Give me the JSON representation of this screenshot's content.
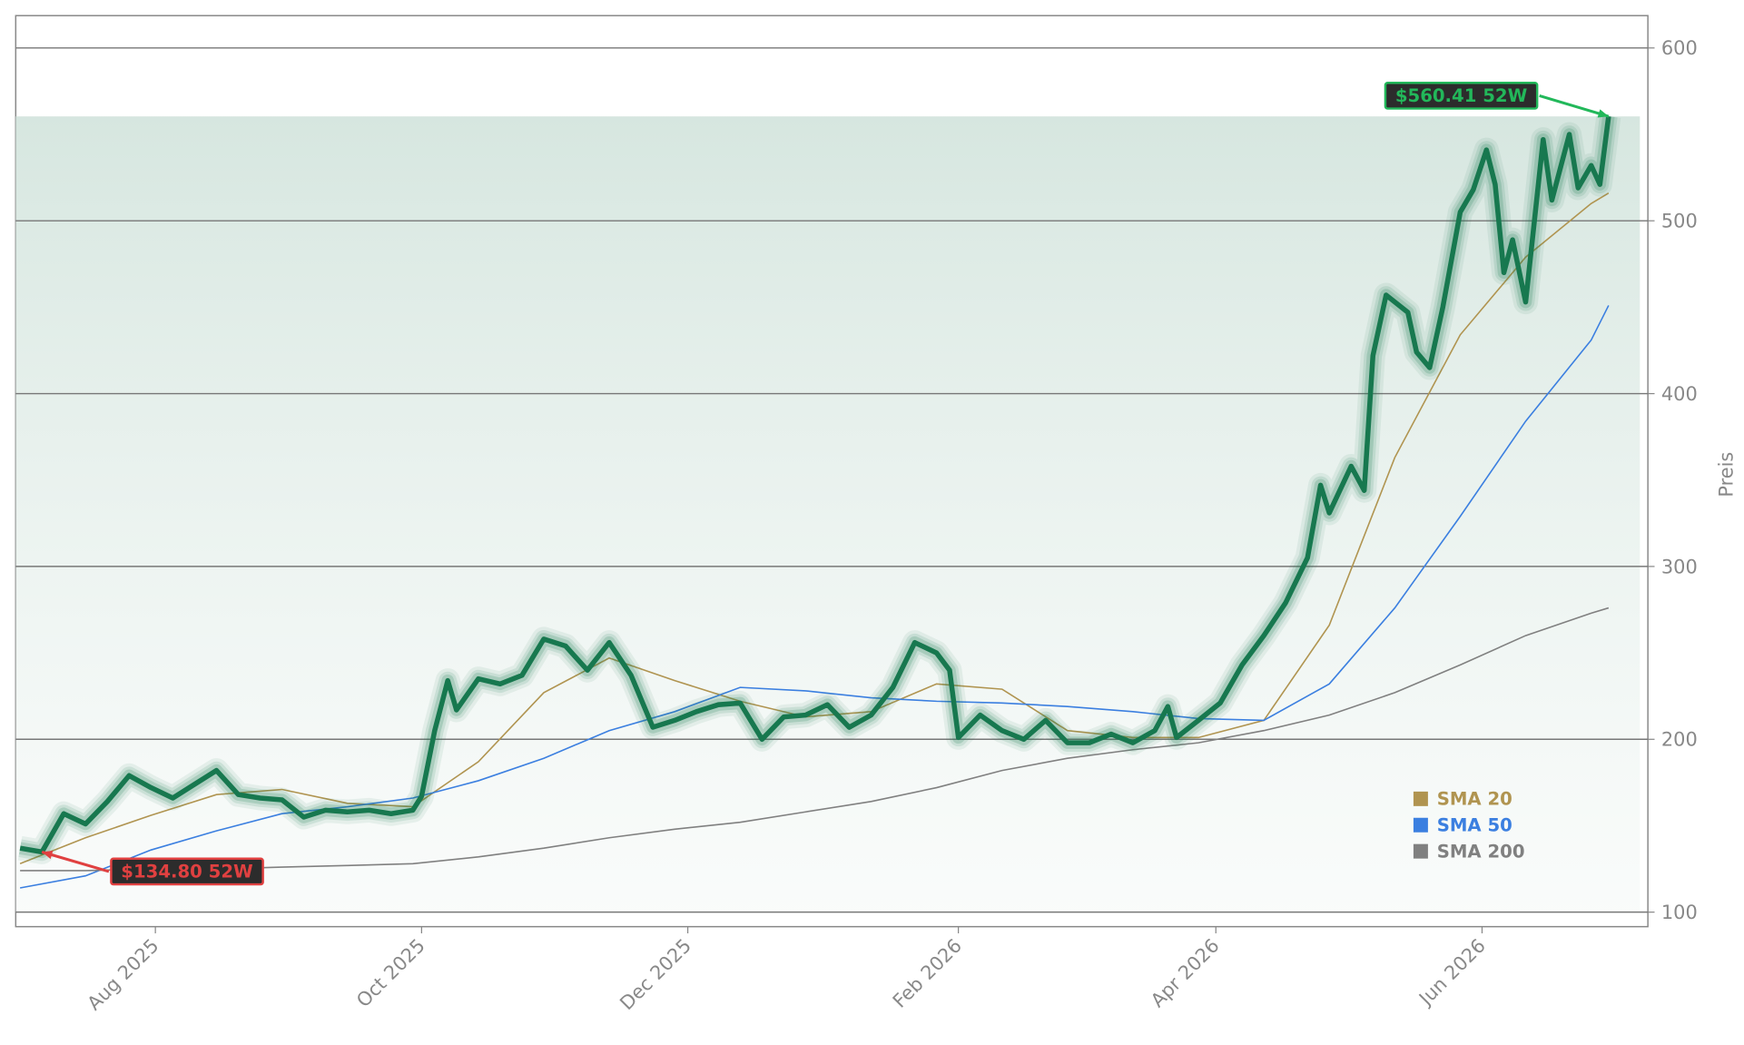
{
  "chart_data": {
    "type": "line",
    "y_label": "Preis",
    "x": [
      0,
      5,
      10,
      15,
      20,
      25,
      30,
      35,
      40,
      45,
      50,
      55,
      60,
      65,
      70,
      75,
      80,
      85,
      90,
      92,
      95,
      98,
      100,
      105,
      110,
      115,
      120,
      125,
      130,
      135,
      140,
      145,
      150,
      155,
      160,
      165,
      170,
      175,
      180,
      185,
      190,
      195,
      200,
      205,
      210,
      213,
      215,
      220,
      225,
      230,
      235,
      240,
      245,
      250,
      255,
      260,
      263,
      265,
      270,
      275,
      280,
      285,
      290,
      295,
      298,
      300,
      305,
      308,
      310,
      313,
      318,
      320,
      323,
      326,
      330,
      333,
      336,
      338,
      340,
      342,
      345,
      349,
      351,
      355,
      357,
      360,
      362,
      364
    ],
    "values": [
      137,
      134.8,
      157,
      151,
      164,
      179,
      172,
      166,
      174,
      182,
      168,
      166,
      165,
      155,
      159,
      158,
      159,
      157,
      159,
      167,
      205,
      234,
      217,
      235,
      232,
      237,
      258,
      254,
      240,
      256,
      237,
      207,
      211,
      216,
      220,
      221,
      200,
      213,
      214,
      220,
      207,
      214,
      230,
      256,
      250,
      240,
      201,
      214,
      205,
      200,
      211,
      198,
      198,
      203,
      198,
      205,
      219,
      201,
      211,
      221,
      243,
      260,
      279,
      305,
      347,
      331,
      358,
      344,
      422,
      457,
      447,
      424,
      415,
      450,
      505,
      518,
      541,
      521,
      470,
      489,
      453,
      547,
      512,
      550,
      519,
      532,
      521,
      560.41
    ],
    "color": "#17784f",
    "series": [
      {
        "name": "SMA 20",
        "color": "#b09450",
        "x": [
          0,
          15,
          30,
          45,
          60,
          75,
          90,
          105,
          120,
          135,
          150,
          165,
          180,
          195,
          210,
          225,
          240,
          255,
          270,
          285,
          300,
          315,
          330,
          345,
          360,
          364
        ],
        "values": [
          128,
          143,
          156,
          168,
          171,
          163,
          161,
          187,
          227,
          247,
          234,
          222,
          213,
          216,
          232,
          229,
          205,
          201,
          201,
          211,
          266,
          363,
          434,
          479,
          510,
          516
        ]
      },
      {
        "name": "SMA 50",
        "color": "#3b7fe0",
        "x": [
          0,
          15,
          30,
          45,
          60,
          75,
          90,
          105,
          120,
          135,
          150,
          165,
          180,
          195,
          210,
          225,
          240,
          255,
          270,
          285,
          300,
          315,
          330,
          345,
          360,
          364
        ],
        "values": [
          114,
          121,
          136,
          147,
          157,
          161,
          166,
          176,
          189,
          205,
          216,
          230,
          228,
          224,
          222,
          221,
          219,
          216,
          212,
          211,
          232,
          276,
          329,
          384,
          431,
          451
        ]
      },
      {
        "name": "SMA 200",
        "color": "#808080",
        "x": [
          0,
          15,
          30,
          45,
          60,
          75,
          90,
          105,
          120,
          135,
          150,
          165,
          180,
          195,
          210,
          225,
          240,
          255,
          270,
          285,
          300,
          315,
          330,
          345,
          360,
          364
        ],
        "values": [
          124,
          124,
          125,
          125,
          126,
          127,
          128,
          132,
          137,
          143,
          148,
          152,
          158,
          164,
          172,
          182,
          189,
          194,
          198,
          205,
          214,
          227,
          243,
          260,
          273,
          276
        ]
      }
    ],
    "annotations": [
      {
        "text": "$560.41 52W",
        "x": 364,
        "y": 560.41,
        "color": "#22b85a"
      },
      {
        "text": "$134.80 52W",
        "x": 5,
        "y": 134.8,
        "color": "#e04040"
      }
    ],
    "xlim": [
      -1,
      373
    ],
    "xticks": [
      {
        "value": 31,
        "label": "Aug 2025"
      },
      {
        "value": 92,
        "label": "Oct 2025"
      },
      {
        "value": 153,
        "label": "Dec 2025"
      },
      {
        "value": 215,
        "label": "Feb 2026"
      },
      {
        "value": 274,
        "label": "Apr 2026"
      },
      {
        "value": 335,
        "label": "Jun 2026"
      }
    ],
    "ylim": [
      91.6,
      618.7
    ],
    "yticks": [
      100,
      200,
      300,
      400,
      500,
      600
    ],
    "grid": true,
    "legend": "lower right"
  }
}
